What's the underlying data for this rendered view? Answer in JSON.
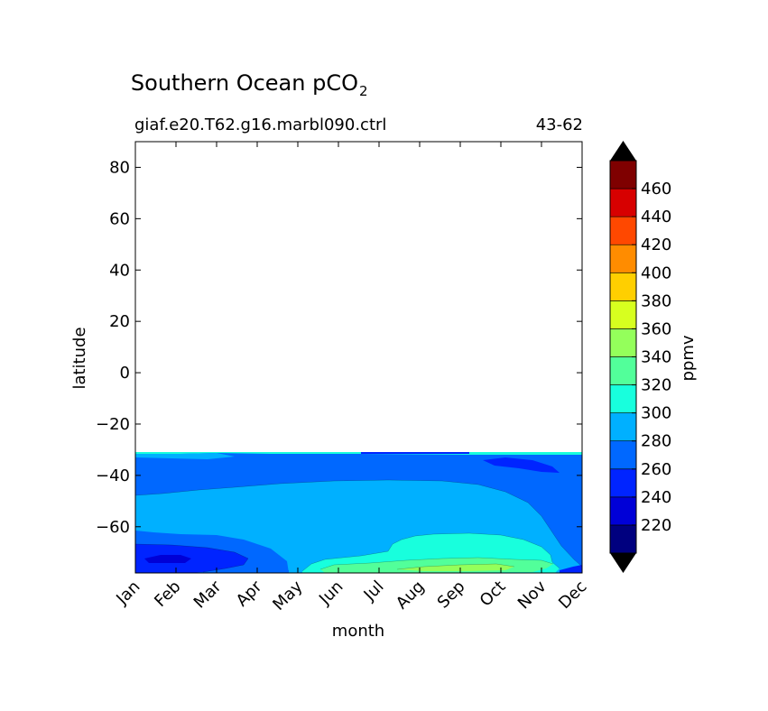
{
  "chart_data": {
    "type": "heatmap",
    "title": "Southern Ocean pCO",
    "title_subscript": "2",
    "subtitle_left": "giaf.e20.T62.g16.marbl090.ctrl",
    "subtitle_right": "43-62",
    "xlabel": "month",
    "ylabel": "latitude",
    "x_categories": [
      "Jan",
      "Feb",
      "Mar",
      "Apr",
      "May",
      "Jun",
      "Jul",
      "Aug",
      "Sep",
      "Oct",
      "Nov",
      "Dec"
    ],
    "y_ticks": [
      80,
      60,
      40,
      20,
      0,
      -20,
      -40,
      -60
    ],
    "y_tick_labels": [
      "80",
      "60",
      "40",
      "20",
      "0",
      "−20",
      "−40",
      "−60"
    ],
    "ylim": [
      -78,
      90
    ],
    "data_lat_range": [
      -78,
      -31.5
    ],
    "colorbar": {
      "label": "ppmv",
      "levels": [
        200,
        220,
        240,
        260,
        280,
        300,
        320,
        340,
        360,
        380,
        400,
        420,
        440,
        460,
        480
      ],
      "tick_labels": [
        "220",
        "240",
        "260",
        "280",
        "300",
        "320",
        "340",
        "360",
        "380",
        "400",
        "420",
        "440",
        "460"
      ],
      "colors": [
        "#00007f",
        "#0000d7",
        "#0024ff",
        "#0068ff",
        "#00b0ff",
        "#18ffdd",
        "#52ff9a",
        "#94ff5b",
        "#d7ff1f",
        "#ffcf00",
        "#ff8c00",
        "#ff4800",
        "#d70000",
        "#7f0000"
      ],
      "extend_low_color": "#000000",
      "extend_high_color": "#000000"
    },
    "regions": [
      {
        "level": 260,
        "desc": "band -31.5 to -42 lat"
      },
      {
        "level": 280,
        "desc": "central body -44 to -68"
      },
      {
        "level": 240,
        "desc": "Jan-Apr south of -67"
      },
      {
        "level": 220,
        "desc": "Feb around -72"
      },
      {
        "level": 300,
        "desc": "Aug-Nov south of -63"
      },
      {
        "level": 320,
        "desc": "Jul-Oct south of -75"
      }
    ]
  }
}
